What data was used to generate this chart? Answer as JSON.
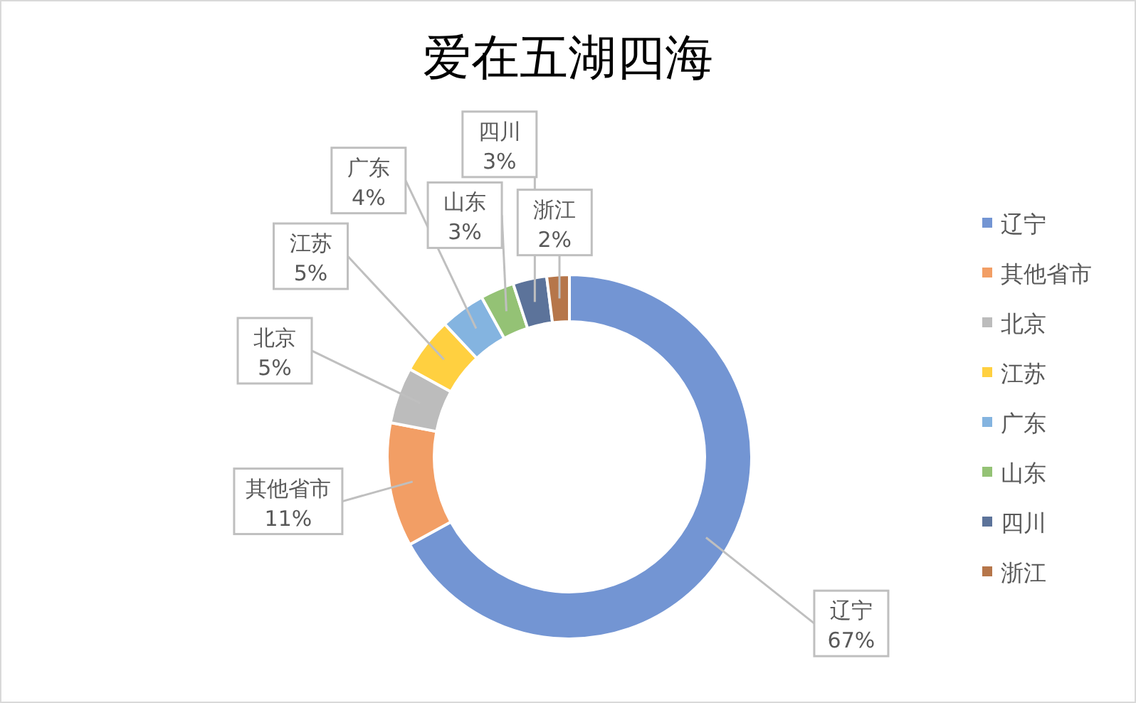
{
  "chart_data": {
    "type": "donut",
    "title": "爱在五湖四海",
    "categories": [
      "辽宁",
      "其他省市",
      "北京",
      "江苏",
      "广东",
      "山东",
      "四川",
      "浙江"
    ],
    "values": [
      67,
      11,
      5,
      5,
      4,
      3,
      3,
      2
    ],
    "value_labels": [
      "67%",
      "11%",
      "5%",
      "5%",
      "4%",
      "3%",
      "3%",
      "2%"
    ],
    "colors": [
      "#4472c4",
      "#ed7d31",
      "#a5a5a5",
      "#ffc000",
      "#5b9bd5",
      "#70ad47",
      "#264478",
      "#9e480e"
    ],
    "legend": "right"
  }
}
